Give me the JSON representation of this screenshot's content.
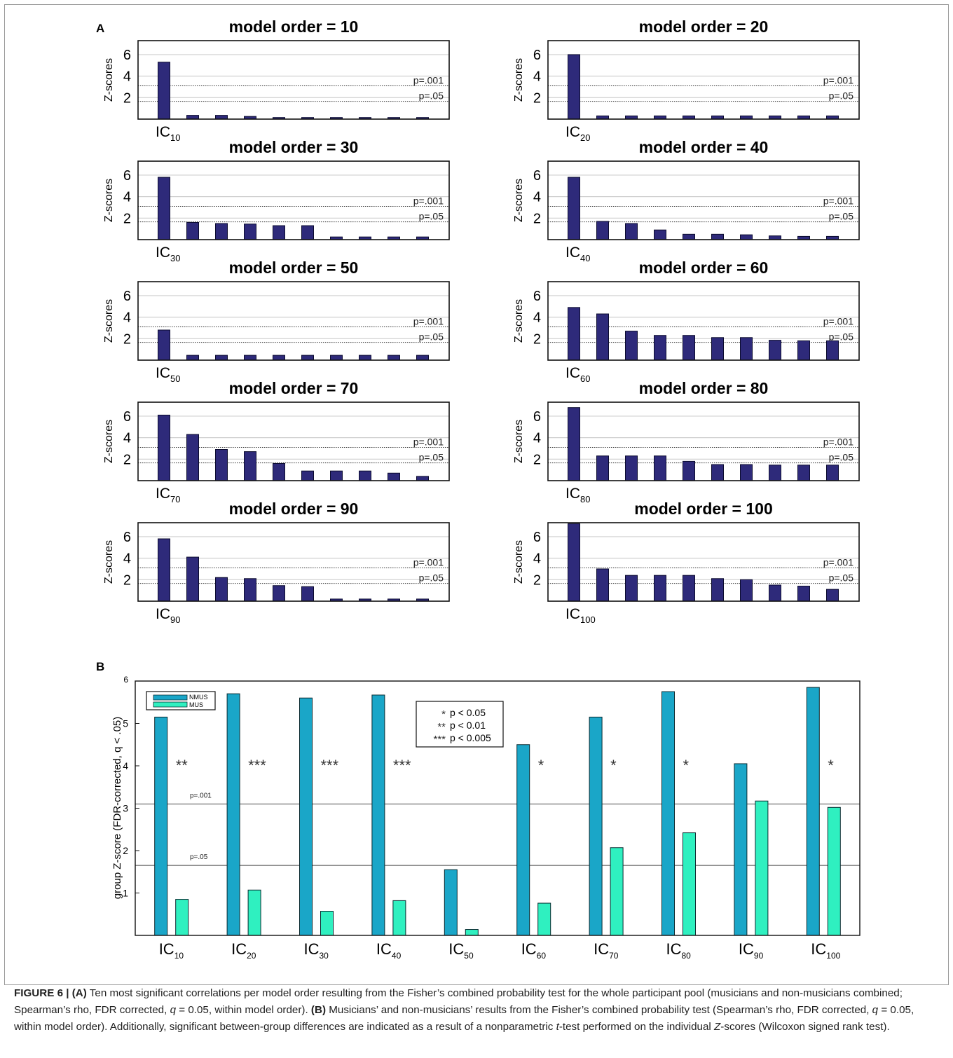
{
  "panel_labels": {
    "a": "A",
    "b": "B"
  },
  "colors": {
    "bar_a": "#2e2a7a",
    "nmus": "#1aa6c8",
    "mus": "#2ff0c0",
    "grid": "#cfcfcf"
  },
  "chart_data": [
    {
      "type": "bar",
      "panel": "A",
      "title": "model order = 10",
      "ylabel": "Z-scores",
      "ylim": [
        0,
        7.3
      ],
      "yticks": [
        2,
        4,
        6
      ],
      "x_label_base": "IC",
      "x_label_sub": "10",
      "thresholds": [
        {
          "label": "p=.001",
          "value": 3.1
        },
        {
          "label": "p=.05",
          "value": 1.65
        }
      ],
      "values": [
        5.3,
        0.35,
        0.35,
        0.25,
        0.15,
        0.15,
        0.15,
        0.15,
        0.15,
        0.15
      ]
    },
    {
      "type": "bar",
      "panel": "A",
      "title": "model order = 20",
      "ylabel": "Z-scores",
      "ylim": [
        0,
        7.3
      ],
      "yticks": [
        2,
        4,
        6
      ],
      "x_label_base": "IC",
      "x_label_sub": "20",
      "thresholds": [
        {
          "label": "p=.001",
          "value": 3.1
        },
        {
          "label": "p=.05",
          "value": 1.65
        }
      ],
      "values": [
        6.0,
        0.3,
        0.3,
        0.3,
        0.3,
        0.3,
        0.3,
        0.3,
        0.3,
        0.3
      ]
    },
    {
      "type": "bar",
      "panel": "A",
      "title": "model order = 30",
      "ylabel": "Z-scores",
      "ylim": [
        0,
        7.3
      ],
      "yticks": [
        2,
        4,
        6
      ],
      "x_label_base": "IC",
      "x_label_sub": "30",
      "thresholds": [
        {
          "label": "p=.001",
          "value": 3.1
        },
        {
          "label": "p=.05",
          "value": 1.65
        }
      ],
      "values": [
        5.8,
        1.6,
        1.5,
        1.45,
        1.3,
        1.3,
        0.25,
        0.25,
        0.25,
        0.25
      ]
    },
    {
      "type": "bar",
      "panel": "A",
      "title": "model order = 40",
      "ylabel": "Z-scores",
      "ylim": [
        0,
        7.3
      ],
      "yticks": [
        2,
        4,
        6
      ],
      "x_label_base": "IC",
      "x_label_sub": "40",
      "thresholds": [
        {
          "label": "p=.001",
          "value": 3.1
        },
        {
          "label": "p=.05",
          "value": 1.65
        }
      ],
      "values": [
        5.8,
        1.7,
        1.5,
        0.9,
        0.5,
        0.5,
        0.45,
        0.35,
        0.3,
        0.3
      ]
    },
    {
      "type": "bar",
      "panel": "A",
      "title": "model order = 50",
      "ylabel": "Z-scores",
      "ylim": [
        0,
        7.3
      ],
      "yticks": [
        2,
        4,
        6
      ],
      "x_label_base": "IC",
      "x_label_sub": "50",
      "thresholds": [
        {
          "label": "p=.001",
          "value": 3.1
        },
        {
          "label": "p=.05",
          "value": 1.65
        }
      ],
      "values": [
        2.8,
        0.45,
        0.45,
        0.45,
        0.45,
        0.45,
        0.45,
        0.45,
        0.45,
        0.45
      ]
    },
    {
      "type": "bar",
      "panel": "A",
      "title": "model order = 60",
      "ylabel": "Z-scores",
      "ylim": [
        0,
        7.3
      ],
      "yticks": [
        2,
        4,
        6
      ],
      "x_label_base": "IC",
      "x_label_sub": "60",
      "thresholds": [
        {
          "label": "p=.001",
          "value": 3.1
        },
        {
          "label": "p=.05",
          "value": 1.65
        }
      ],
      "values": [
        4.9,
        4.3,
        2.7,
        2.3,
        2.3,
        2.1,
        2.1,
        1.85,
        1.8,
        1.8
      ]
    },
    {
      "type": "bar",
      "panel": "A",
      "title": "model order = 70",
      "ylabel": "Z-scores",
      "ylim": [
        0,
        7.3
      ],
      "yticks": [
        2,
        4,
        6
      ],
      "x_label_base": "IC",
      "x_label_sub": "70",
      "thresholds": [
        {
          "label": "p=.001",
          "value": 3.1
        },
        {
          "label": "p=.05",
          "value": 1.65
        }
      ],
      "values": [
        6.1,
        4.3,
        2.9,
        2.7,
        1.6,
        0.9,
        0.9,
        0.9,
        0.7,
        0.4
      ]
    },
    {
      "type": "bar",
      "panel": "A",
      "title": "model order = 80",
      "ylabel": "Z-scores",
      "ylim": [
        0,
        7.3
      ],
      "yticks": [
        2,
        4,
        6
      ],
      "x_label_base": "IC",
      "x_label_sub": "80",
      "thresholds": [
        {
          "label": "p=.001",
          "value": 3.1
        },
        {
          "label": "p=.05",
          "value": 1.65
        }
      ],
      "values": [
        6.8,
        2.3,
        2.3,
        2.3,
        1.8,
        1.5,
        1.5,
        1.45,
        1.45,
        1.45
      ]
    },
    {
      "type": "bar",
      "panel": "A",
      "title": "model order = 90",
      "ylabel": "Z-scores",
      "ylim": [
        0,
        7.3
      ],
      "yticks": [
        2,
        4,
        6
      ],
      "x_label_base": "IC",
      "x_label_sub": "90",
      "thresholds": [
        {
          "label": "p=.001",
          "value": 3.1
        },
        {
          "label": "p=.05",
          "value": 1.65
        }
      ],
      "values": [
        5.8,
        4.1,
        2.2,
        2.1,
        1.45,
        1.35,
        0.2,
        0.2,
        0.2,
        0.2
      ]
    },
    {
      "type": "bar",
      "panel": "A",
      "title": "model order = 100",
      "ylabel": "Z-scores",
      "ylim": [
        0,
        7.3
      ],
      "yticks": [
        2,
        4,
        6
      ],
      "x_label_base": "IC",
      "x_label_sub": "100",
      "thresholds": [
        {
          "label": "p=.001",
          "value": 3.1
        },
        {
          "label": "p=.05",
          "value": 1.65
        }
      ],
      "values": [
        7.2,
        3.0,
        2.4,
        2.4,
        2.4,
        2.1,
        2.0,
        1.5,
        1.4,
        1.1
      ]
    },
    {
      "type": "bar",
      "panel": "B",
      "ylabel": "group Z-score (FDR-corrected, q < .05)",
      "ylim": [
        0,
        6
      ],
      "yticks": [
        1,
        2,
        3,
        4,
        5
      ],
      "top_tick": "6",
      "x_label_base": "IC",
      "categories": [
        "10",
        "20",
        "30",
        "40",
        "50",
        "60",
        "70",
        "80",
        "90",
        "100"
      ],
      "series": [
        {
          "name": "NMUS",
          "values": [
            5.15,
            5.7,
            5.6,
            5.67,
            1.55,
            4.5,
            5.15,
            5.75,
            4.05,
            5.85
          ]
        },
        {
          "name": "MUS",
          "values": [
            0.85,
            1.07,
            0.57,
            0.82,
            0.14,
            0.76,
            2.07,
            2.42,
            3.17,
            3.02
          ]
        }
      ],
      "significance": [
        "**",
        "***",
        "***",
        "***",
        "",
        "*",
        "*",
        "*",
        "",
        "*"
      ],
      "thresholds": [
        {
          "label": "p=.001",
          "value": 3.1
        },
        {
          "label": "p=.05",
          "value": 1.65
        }
      ],
      "sig_legend": [
        {
          "marker": "*",
          "text": "p < 0.05"
        },
        {
          "marker": "**",
          "text": "p < 0.01"
        },
        {
          "marker": "***",
          "text": "p < 0.005"
        }
      ]
    }
  ],
  "caption": {
    "fig_label": "FIGURE 6 |",
    "part_a_label": "(A)",
    "part_a_text": " Ten most significant correlations per model order resulting from the Fisher’s combined probability test for the whole participant pool (musicians and non-musicians combined; Spearman’s rho, FDR corrected, ",
    "q_symbol": "q",
    "q_value_a": " = 0.05, within model order). ",
    "part_b_label": "(B)",
    "part_b_text": " Musicians’ and non-musicians’ results from the Fisher’s combined probability test (Spearman’s rho, FDR corrected, ",
    "q_value_b": " = 0.05, within model order). Additionally, significant between-group differences are indicated as a result of a nonparametric ",
    "t_symbol": "t",
    "t_text": "-test performed on the individual ",
    "z_symbol": "Z",
    "z_text": "-scores (Wilcoxon signed rank test)."
  }
}
